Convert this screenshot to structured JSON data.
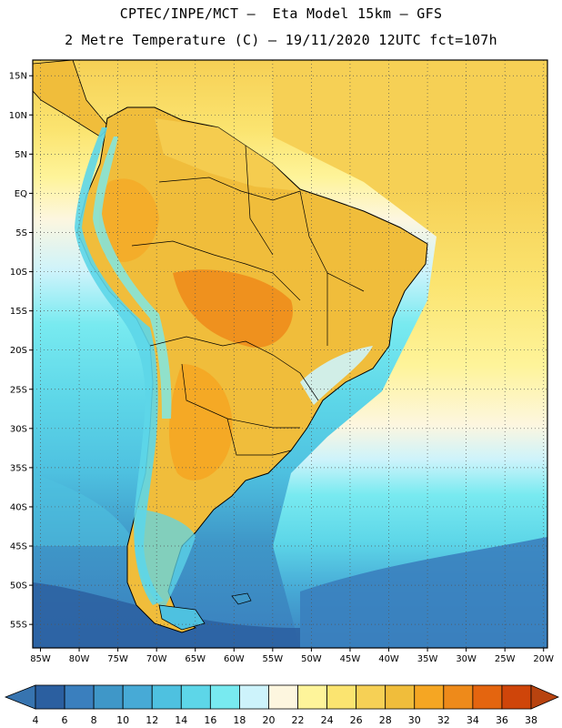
{
  "header": {
    "line1": "CPTEC/INPE/MCT –  Eta Model 15km – GFS",
    "line2": "2 Metre Temperature (C) – 19/11/2020 12UTC fct=107h"
  },
  "map": {
    "lon_range": [
      -86,
      -19.5
    ],
    "lat_range": [
      -58,
      17
    ],
    "lat_ticks": [
      {
        "v": 15,
        "label": "15N"
      },
      {
        "v": 10,
        "label": "10N"
      },
      {
        "v": 5,
        "label": "5N"
      },
      {
        "v": 0,
        "label": "EQ"
      },
      {
        "v": -5,
        "label": "5S"
      },
      {
        "v": -10,
        "label": "10S"
      },
      {
        "v": -15,
        "label": "15S"
      },
      {
        "v": -20,
        "label": "20S"
      },
      {
        "v": -25,
        "label": "25S"
      },
      {
        "v": -30,
        "label": "30S"
      },
      {
        "v": -35,
        "label": "35S"
      },
      {
        "v": -40,
        "label": "40S"
      },
      {
        "v": -45,
        "label": "45S"
      },
      {
        "v": -50,
        "label": "50S"
      },
      {
        "v": -55,
        "label": "55S"
      }
    ],
    "lon_ticks": [
      {
        "v": -85,
        "label": "85W"
      },
      {
        "v": -80,
        "label": "80W"
      },
      {
        "v": -75,
        "label": "75W"
      },
      {
        "v": -70,
        "label": "70W"
      },
      {
        "v": -65,
        "label": "65W"
      },
      {
        "v": -60,
        "label": "60W"
      },
      {
        "v": -55,
        "label": "55W"
      },
      {
        "v": -50,
        "label": "50W"
      },
      {
        "v": -45,
        "label": "45W"
      },
      {
        "v": -40,
        "label": "40W"
      },
      {
        "v": -35,
        "label": "35W"
      },
      {
        "v": -30,
        "label": "30W"
      },
      {
        "v": -25,
        "label": "25W"
      },
      {
        "v": -20,
        "label": "20W"
      }
    ],
    "grid": "dotted"
  },
  "colorbar": {
    "levels": [
      "4",
      "6",
      "8",
      "10",
      "12",
      "14",
      "16",
      "18",
      "20",
      "22",
      "24",
      "26",
      "28",
      "30",
      "32",
      "34",
      "36",
      "38"
    ],
    "colors": [
      "#2b5fa0",
      "#3a7fbe",
      "#3f97c8",
      "#47aad6",
      "#4ec1e0",
      "#5dd6e8",
      "#78eaf0",
      "#cdf3fb",
      "#fdf6df",
      "#fef49a",
      "#fbe470",
      "#f6d055",
      "#f0bd3b",
      "#f5a623",
      "#ee8a1a",
      "#e4650f",
      "#cf450a"
    ],
    "low_color": "#3774b0",
    "high_color": "#b8430f"
  },
  "legend": {
    "temperature_unit": "C"
  }
}
